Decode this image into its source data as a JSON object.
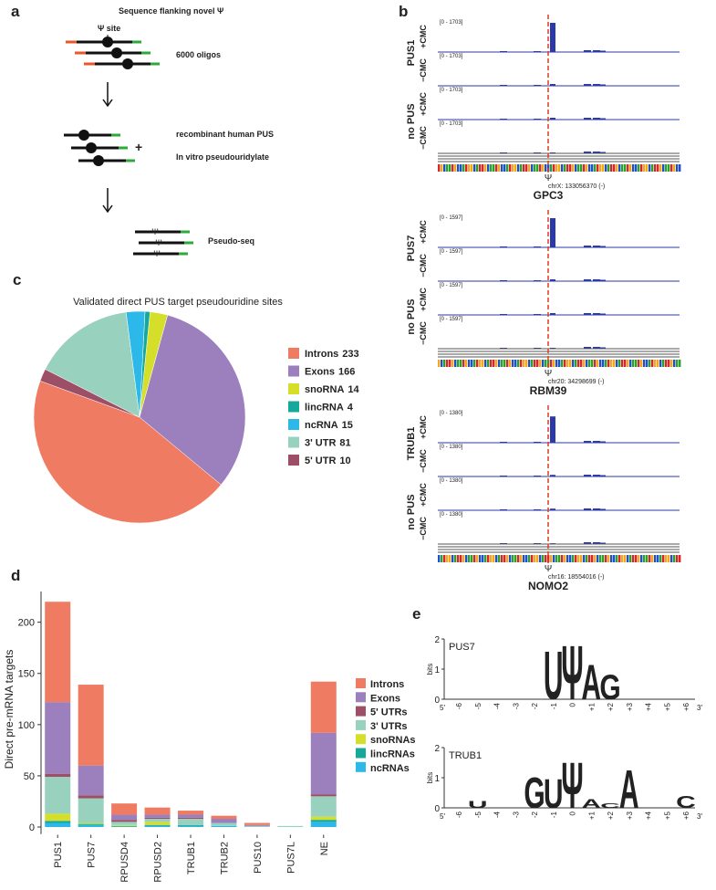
{
  "panel_a": {
    "label": "a",
    "title": "Sequence flanking novel Ψ",
    "site": "Ψ site",
    "oligos": "6000 oligos",
    "plus": "+",
    "enzyme": "recombinant human PUS",
    "reaction": "In vitro pseudouridylate",
    "method": "Pseudo-seq"
  },
  "panel_b": {
    "label": "b",
    "psi": "Ψ",
    "groups": [
      {
        "enzyme": "PUS1",
        "control": "no PUS",
        "tracks": [
          "+CMC",
          "−CMC",
          "+CMC",
          "−CMC"
        ],
        "range": "[0 - 1703]",
        "coord": "chrX: 133056370 (-)",
        "gene": "GPC3"
      },
      {
        "enzyme": "PUS7",
        "control": "no PUS",
        "tracks": [
          "+CMC",
          "−CMC",
          "+CMC",
          "−CMC"
        ],
        "range": "[0 - 1597]",
        "coord": "chr20: 34298699 (-)",
        "gene": "RBM39"
      },
      {
        "enzyme": "TRUB1",
        "control": "no PUS",
        "tracks": [
          "+CMC",
          "−CMC",
          "+CMC",
          "−CMC"
        ],
        "range": "[0 - 1380]",
        "coord": "chr16: 18554016 (-)",
        "gene": "NOMO2"
      }
    ]
  },
  "chart_data": [
    {
      "type": "pie",
      "panel": "c",
      "title": "Validated direct PUS target pseudouridine sites",
      "categories": [
        "Introns",
        "Exons",
        "snoRNA",
        "lincRNA",
        "ncRNA",
        "3' UTR",
        "5' UTR"
      ],
      "values": [
        233,
        166,
        14,
        4,
        15,
        81,
        10
      ],
      "colors": [
        "#ee7b62",
        "#9c7fbd",
        "#d5df2a",
        "#16a89a",
        "#2cb8e8",
        "#98d2bf",
        "#9c4f66"
      ]
    },
    {
      "type": "bar",
      "panel": "d",
      "stacked": true,
      "y_label": "Direct pre-mRNA targets",
      "categories": [
        "PUS1",
        "PUS7",
        "RPUSD4",
        "RPUSD2",
        "TRUB1",
        "TRUB2",
        "PUS10",
        "PUS7L",
        "NE"
      ],
      "series": [
        {
          "name": "Introns",
          "color": "#ee7b62",
          "values": [
            98,
            79,
            11,
            7,
            4,
            3,
            2,
            0,
            50
          ]
        },
        {
          "name": "Exons",
          "color": "#9c7fbd",
          "values": [
            70,
            29,
            5,
            3,
            3,
            4,
            1,
            0,
            60
          ]
        },
        {
          "name": "5' UTRs",
          "color": "#9c4f66",
          "values": [
            3,
            3,
            2,
            1,
            1,
            0,
            0,
            0,
            2
          ]
        },
        {
          "name": "3' UTRs",
          "color": "#98d2bf",
          "values": [
            36,
            24,
            3,
            3,
            6,
            3,
            1,
            1,
            20
          ]
        },
        {
          "name": "snoRNAs",
          "color": "#d5df2a",
          "values": [
            7,
            1,
            1,
            3,
            0,
            0,
            0,
            0,
            3
          ]
        },
        {
          "name": "lincRNAs",
          "color": "#16a89a",
          "values": [
            2,
            1,
            0,
            1,
            1,
            0,
            0,
            0,
            2
          ]
        },
        {
          "name": "ncRNAs",
          "color": "#2cb8e8",
          "values": [
            4,
            2,
            1,
            1,
            1,
            1,
            0,
            0,
            5
          ]
        }
      ],
      "ylim": [
        0,
        230
      ],
      "yticks": [
        0,
        50,
        100,
        150,
        200
      ]
    }
  ],
  "panel_e": {
    "label": "e",
    "y_label": "bits",
    "yticks": [
      0,
      1,
      2
    ],
    "positions": [
      "-6",
      "-5",
      "-4",
      "-3",
      "-2",
      "-1",
      "0",
      "+1",
      "+2",
      "+3",
      "+4",
      "+5",
      "+6"
    ],
    "end5": "5′",
    "end3": "3′",
    "logos": [
      {
        "name": "PUS7",
        "letters": [
          {
            "letter": "U",
            "pos": -1,
            "bits": 1.65,
            "color": "#c8102e"
          },
          {
            "letter": "Ψ",
            "pos": 0,
            "bits": 1.85,
            "color": "#7b3f9e"
          },
          {
            "letter": "A",
            "pos": 1,
            "bits": 1.2,
            "color": "#35a835"
          },
          {
            "letter": "G",
            "pos": 2,
            "bits": 0.85,
            "color": "#f0a91c"
          }
        ]
      },
      {
        "name": "TRUB1",
        "letters": [
          {
            "letter": "U",
            "pos": -5,
            "bits": 0.25,
            "color": "#c8102e"
          },
          {
            "letter": "G",
            "pos": -2,
            "bits": 1.05,
            "color": "#f0a91c"
          },
          {
            "letter": "U",
            "pos": -1,
            "bits": 1.0,
            "color": "#f0a91c"
          },
          {
            "letter": "Ψ",
            "pos": 0,
            "bits": 1.55,
            "color": "#7b3f9e"
          },
          {
            "letter": "A",
            "pos": 1,
            "bits": 0.3,
            "color": "#35a835"
          },
          {
            "letter": "C",
            "pos": 2,
            "bits": 0.15,
            "color": "#2456b8"
          },
          {
            "letter": "A",
            "pos": 3,
            "bits": 1.3,
            "color": "#35a835"
          },
          {
            "letter": "C",
            "pos": 6,
            "bits": 0.4,
            "color": "#2456b8"
          }
        ]
      }
    ]
  }
}
